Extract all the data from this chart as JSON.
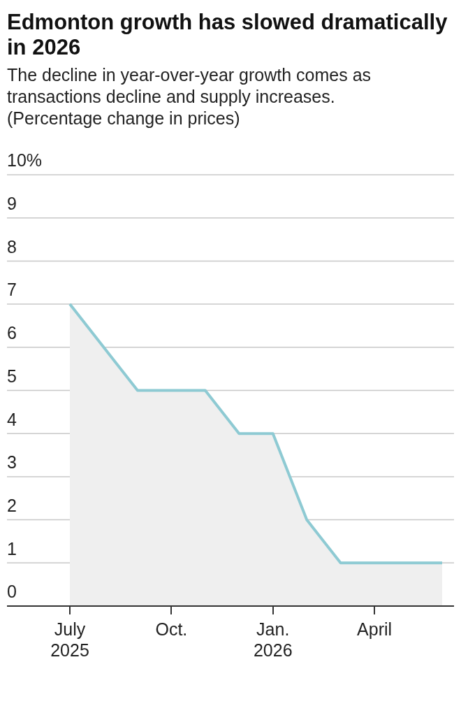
{
  "chart_data": {
    "type": "area",
    "title": "Edmonton growth has slowed dramatically in 2026",
    "subtitle": "The decline in year-over-year growth comes as transactions decline and supply increases. (Percentage change in prices)",
    "categories": [
      "July 2025",
      null,
      null,
      "Oct.",
      null,
      null,
      "Jan. 2026",
      null,
      null,
      "April",
      null,
      null
    ],
    "series": [
      {
        "color": "#8ecad3",
        "values": [
          7,
          6,
          5,
          5,
          5,
          4,
          4,
          2,
          1,
          1,
          1,
          1
        ]
      }
    ],
    "ylim": [
      0,
      10
    ],
    "yticks": [
      0,
      1,
      2,
      3,
      4,
      5,
      6,
      7,
      8,
      9,
      {
        "value": 10,
        "label": "10%"
      }
    ],
    "grid": "y",
    "legend": false
  }
}
